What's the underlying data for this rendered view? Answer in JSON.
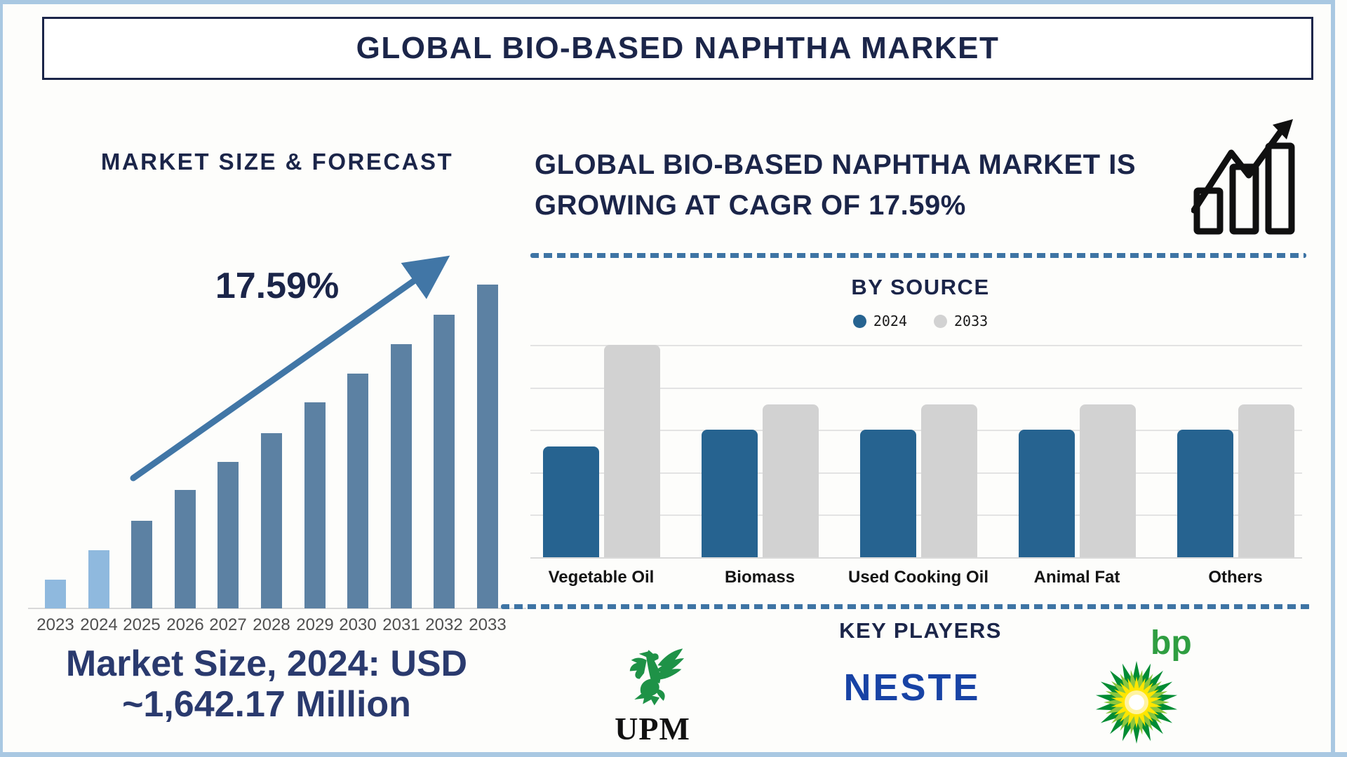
{
  "page": {
    "background": "#FDFDFB",
    "frame_color": "#A9C8E2",
    "accent_navy": "#1B2549",
    "dashed_divider_color": "#3E74A4"
  },
  "title": "GLOBAL BIO-BASED NAPHTHA MARKET",
  "left_panel": {
    "heading": "MARKET SIZE & FORECAST",
    "cagr_label": "17.59%",
    "caption_line1": "Market Size, 2024: USD",
    "caption_line2": "~1,642.17 Million",
    "arrow_color": "#4176A6"
  },
  "right_panel": {
    "heading_line1": "GLOBAL BIO-BASED NAPHTHA MARKET IS",
    "heading_line2": "GROWING AT CAGR OF 17.59%",
    "by_source_heading": "BY SOURCE",
    "legend": [
      {
        "label": "2024",
        "color": "#266390"
      },
      {
        "label": "2033",
        "color": "#D2D2D2"
      }
    ]
  },
  "key_players": {
    "heading": "KEY PLAYERS",
    "companies": [
      {
        "name": "UPM",
        "wordmark_color": "#111111",
        "icon": "upm-griffin-icon",
        "icon_color": "#1E9247"
      },
      {
        "name": "NESTE",
        "wordmark_color": "#1843A5"
      },
      {
        "name": "bp",
        "wordmark_color": "#2F9E41",
        "icon": "bp-helios-icon",
        "helios_colors": [
          "#008C33",
          "#8CC63E",
          "#FFE600",
          "#FFF3A0",
          "#FFFFFF"
        ]
      }
    ]
  },
  "chart_data": [
    {
      "id": "market-size-forecast",
      "type": "bar",
      "title": "MARKET SIZE & FORECAST",
      "categories": [
        "2023",
        "2024",
        "2025",
        "2026",
        "2027",
        "2028",
        "2029",
        "2030",
        "2031",
        "2032",
        "2033"
      ],
      "values_relative": [
        0.089,
        0.18,
        0.271,
        0.366,
        0.452,
        0.541,
        0.636,
        0.725,
        0.816,
        0.907,
        1.0
      ],
      "value_axis_labeled": false,
      "grid": false,
      "annotation": "17.59%",
      "note": "Market Size, 2024: USD ~1,642.17 Million",
      "bar_colors": [
        "#8FB9DE",
        "#8FB9DE",
        "#5C81A3",
        "#5C81A3",
        "#5C81A3",
        "#5C81A3",
        "#5C81A3",
        "#5C81A3",
        "#5C81A3",
        "#5C81A3",
        "#5C81A3"
      ]
    },
    {
      "id": "by-source",
      "type": "bar",
      "title": "BY SOURCE",
      "categories": [
        "Vegetable Oil",
        "Biomass",
        "Used Cooking Oil",
        "Animal Fat",
        "Others"
      ],
      "series": [
        {
          "name": "2024",
          "color": "#266390",
          "values": [
            2.6,
            3.0,
            3.0,
            3.0,
            3.0
          ]
        },
        {
          "name": "2033",
          "color": "#D2D2D2",
          "values": [
            5.0,
            3.6,
            3.6,
            3.6,
            3.6
          ]
        }
      ],
      "ylim": [
        0,
        5
      ],
      "grid": true,
      "units": "relative gridline units (y-axis unlabeled)",
      "legend_position": "top"
    }
  ]
}
